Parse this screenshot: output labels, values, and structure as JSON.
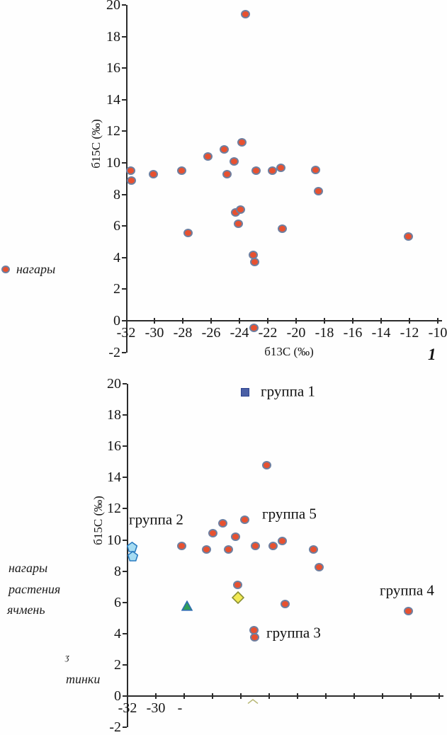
{
  "legend_top": {
    "label": "нагары",
    "marker": "circle"
  },
  "side_labels": [
    {
      "text": "нагары"
    },
    {
      "text": "растения"
    },
    {
      "text": "ячмень"
    },
    {
      "text": "ʒ"
    },
    {
      "text": "тинки"
    }
  ],
  "figure_number": "1",
  "colors": {
    "circle_fill": "#e75130",
    "circle_stroke": "#6e7fa0",
    "square_fill": "#4a5fa5",
    "square_stroke": "#2d4390",
    "pentagon_fill": "#a6dcf2",
    "pentagon_stroke": "#2a7cc0",
    "triangle_fill": "#2f9e5a",
    "triangle_stroke": "#2f6db0",
    "diamond_fill": "#f2ea55",
    "diamond_stroke": "#8a8f35",
    "axis": "#2b2b2b"
  },
  "chart_data": [
    {
      "type": "scatter",
      "title": "",
      "xlabel": "б13С (‰)",
      "ylabel": "б15С (‰)",
      "xlim": [
        -32,
        -10
      ],
      "ylim": [
        -2,
        20
      ],
      "grid": false,
      "legend_position": "left-outside",
      "xticks": [
        {
          "value": -32,
          "label": "-32"
        },
        {
          "value": -30,
          "label": "-30"
        },
        {
          "value": -28,
          "label": "-28"
        },
        {
          "value": -26,
          "label": "-26"
        },
        {
          "value": -24,
          "label": "-24"
        },
        {
          "value": -22,
          "label": "-22"
        },
        {
          "value": -20,
          "label": "-20"
        },
        {
          "value": -18,
          "label": "-18"
        },
        {
          "value": -16,
          "label": "-16"
        },
        {
          "value": -14,
          "label": "-14"
        },
        {
          "value": -12,
          "label": "-12"
        },
        {
          "value": -10,
          "label": "-10"
        }
      ],
      "yticks": [
        {
          "value": 20,
          "label": "20"
        },
        {
          "value": 18,
          "label": "18"
        },
        {
          "value": 16,
          "label": "16"
        },
        {
          "value": 14,
          "label": "14"
        },
        {
          "value": 12,
          "label": "12"
        },
        {
          "value": 10,
          "label": "10"
        },
        {
          "value": 8,
          "label": "8"
        },
        {
          "value": 6,
          "label": "6"
        },
        {
          "value": 4,
          "label": "4"
        },
        {
          "value": 2,
          "label": "2"
        },
        {
          "value": 0,
          "label": "0"
        },
        {
          "value": -2,
          "label": "-2"
        }
      ],
      "xtick_marks": [
        -30,
        -28,
        -26,
        -24,
        -22,
        -20,
        -18,
        -16,
        -14,
        -12,
        -10
      ],
      "series": [
        {
          "name": "нагары",
          "marker": "circle",
          "fill": "#e75130",
          "stroke": "#6e7fa0",
          "points": [
            [
              -31.7,
              9.5
            ],
            [
              -31.65,
              8.9
            ],
            [
              -30.1,
              9.3
            ],
            [
              -28.1,
              9.5
            ],
            [
              -27.65,
              5.55
            ],
            [
              -26.25,
              10.4
            ],
            [
              -25.1,
              10.85
            ],
            [
              -24.9,
              9.3
            ],
            [
              -24.4,
              10.1
            ],
            [
              -24.3,
              6.85
            ],
            [
              -24.1,
              6.15
            ],
            [
              -23.95,
              7.05
            ],
            [
              -23.85,
              11.3
            ],
            [
              -23.6,
              19.4
            ],
            [
              -23.05,
              4.15
            ],
            [
              -23.0,
              -0.45
            ],
            [
              -22.95,
              3.7
            ],
            [
              -22.85,
              9.5
            ],
            [
              -21.7,
              9.5
            ],
            [
              -21.1,
              9.7
            ],
            [
              -21.0,
              5.85
            ],
            [
              -18.65,
              9.55
            ],
            [
              -18.45,
              8.2
            ],
            [
              -12.1,
              5.35
            ]
          ]
        }
      ],
      "annotations": []
    },
    {
      "type": "scatter",
      "title": "",
      "xlabel": "",
      "ylabel": "б15С (‰)",
      "xlim": [
        -32,
        -10
      ],
      "ylim": [
        -2,
        20
      ],
      "grid": false,
      "legend_position": "left-outside",
      "xticks": [
        {
          "value": -32,
          "label": "-32"
        },
        {
          "value": -30,
          "label": "-30"
        },
        {
          "value": -28.3,
          "label": "-"
        }
      ],
      "yticks": [
        {
          "value": 20,
          "label": "20"
        },
        {
          "value": 18,
          "label": "18"
        },
        {
          "value": 16,
          "label": "16"
        },
        {
          "value": 14,
          "label": "14"
        },
        {
          "value": 12,
          "label": "12"
        },
        {
          "value": 10,
          "label": "10"
        },
        {
          "value": 8,
          "label": "8"
        },
        {
          "value": 6,
          "label": "6"
        },
        {
          "value": 4,
          "label": "4"
        },
        {
          "value": 2,
          "label": "2"
        },
        {
          "value": 0,
          "label": "0"
        },
        {
          "value": -2,
          "label": "-2"
        }
      ],
      "xtick_marks": [
        -30,
        -28,
        -26,
        -24,
        -22,
        -20,
        -18,
        -16,
        -14,
        -12,
        -10
      ],
      "series": [
        {
          "name": "группа 1",
          "marker": "square",
          "fill": "#4a5fa5",
          "stroke": "#2d4390",
          "points": [
            [
              -23.7,
              19.45
            ]
          ]
        },
        {
          "name": "группа 2",
          "marker": "pentagon",
          "fill": "#a6dcf2",
          "stroke": "#2a7cc0",
          "points": [
            [
              -31.7,
              9.55
            ],
            [
              -31.65,
              8.95
            ]
          ]
        },
        {
          "name": "triangle-point",
          "marker": "triangle",
          "fill": "#2f9e5a",
          "stroke": "#2f6db0",
          "points": [
            [
              -27.8,
              5.8
            ]
          ]
        },
        {
          "name": "diamond-point",
          "marker": "diamond",
          "fill": "#f2ea55",
          "stroke": "#8a8f35",
          "points": [
            [
              -24.2,
              6.3
            ]
          ]
        },
        {
          "name": "нагары",
          "marker": "circle",
          "fill": "#e75130",
          "stroke": "#6e7fa0",
          "points": [
            [
              -28.2,
              9.6
            ],
            [
              -26.45,
              9.4
            ],
            [
              -26.0,
              10.45
            ],
            [
              -25.3,
              11.05
            ],
            [
              -24.9,
              9.4
            ],
            [
              -24.4,
              10.2
            ],
            [
              -24.25,
              7.1
            ],
            [
              -23.75,
              11.3
            ],
            [
              -23.1,
              4.2
            ],
            [
              -23.05,
              3.75
            ],
            [
              -23.0,
              9.6
            ],
            [
              -22.2,
              14.8
            ],
            [
              -21.75,
              9.6
            ],
            [
              -21.1,
              9.95
            ],
            [
              -20.9,
              5.9
            ],
            [
              -18.9,
              9.4
            ],
            [
              -18.5,
              8.25
            ],
            [
              -12.2,
              5.45
            ]
          ]
        },
        {
          "name": "partial-marker-below-axis",
          "marker": "diamond-top",
          "fill": "none",
          "stroke": "#b9b978",
          "points": [
            [
              -23.15,
              -0.3
            ]
          ]
        }
      ],
      "annotations": [
        {
          "text": "группа 1",
          "x": -22.6,
          "y": 19.5
        },
        {
          "text": "группа 2",
          "x": -31.9,
          "y": 11.3
        },
        {
          "text": "группа 5",
          "x": -22.5,
          "y": 11.65
        },
        {
          "text": "группа 3",
          "x": -22.2,
          "y": 4.05
        },
        {
          "text": "группа 4",
          "x": -14.2,
          "y": 6.75
        }
      ]
    }
  ]
}
